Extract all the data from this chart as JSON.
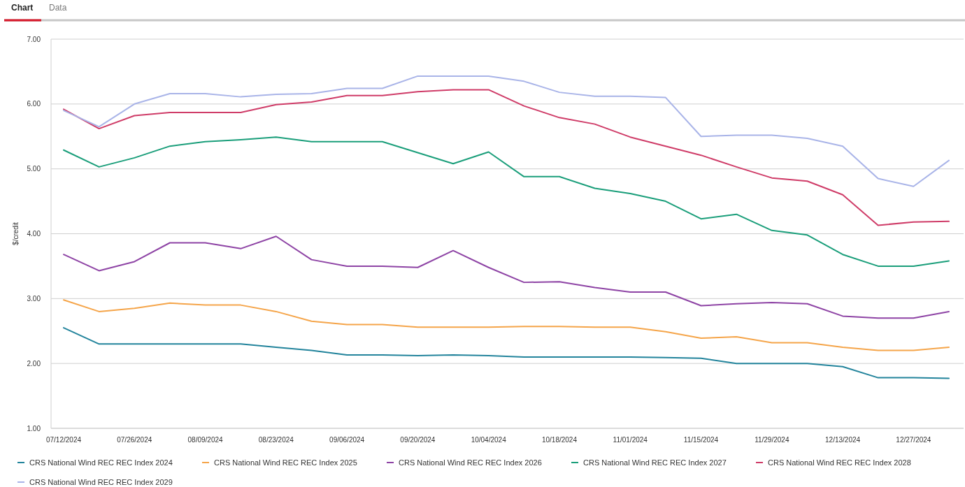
{
  "chart_data": {
    "type": "line",
    "ylabel": "$/credit",
    "annotations": [
      "Chart",
      "Data"
    ],
    "categories": [
      "07/12/2024",
      null,
      "07/26/2024",
      null,
      "08/09/2024",
      null,
      "08/23/2024",
      null,
      "09/06/2024",
      null,
      "09/20/2024",
      null,
      "10/04/2024",
      null,
      "10/18/2024",
      null,
      "11/01/2024",
      null,
      "11/15/2024",
      null,
      "11/29/2024",
      null,
      "12/13/2024",
      null,
      "12/27/2024",
      null
    ],
    "ylim": [
      1,
      7
    ],
    "yticks": [
      {
        "value": 1,
        "label": "1.00"
      },
      {
        "value": 2,
        "label": "2.00"
      },
      {
        "value": 3,
        "label": "3.00"
      },
      {
        "value": 4,
        "label": "4.00"
      },
      {
        "value": 5,
        "label": "5.00"
      },
      {
        "value": 6,
        "label": "6.00"
      },
      {
        "value": 7,
        "label": "7.00"
      }
    ],
    "grid": "y",
    "legend": "bottom",
    "marker": "none",
    "line_style": "solid",
    "series": [
      {
        "name": "CRS National Wind REC REC Index 2024",
        "color": "#23849c",
        "values": [
          2.55,
          2.3,
          2.3,
          2.3,
          2.3,
          2.3,
          2.25,
          2.2,
          2.13,
          2.13,
          2.12,
          2.13,
          2.12,
          2.1,
          2.1,
          2.1,
          2.1,
          2.09,
          2.08,
          2.0,
          2.0,
          2.0,
          1.95,
          1.78,
          1.78,
          1.77
        ]
      },
      {
        "name": "CRS National Wind REC REC Index 2025",
        "color": "#f5a54a",
        "values": [
          2.98,
          2.8,
          2.85,
          2.93,
          2.9,
          2.9,
          2.8,
          2.65,
          2.6,
          2.6,
          2.56,
          2.56,
          2.56,
          2.57,
          2.57,
          2.56,
          2.56,
          2.49,
          2.39,
          2.41,
          2.32,
          2.32,
          2.25,
          2.2,
          2.2,
          2.25
        ]
      },
      {
        "name": "CRS National Wind REC REC Index 2026",
        "color": "#8e44a5",
        "values": [
          3.68,
          3.43,
          3.57,
          3.86,
          3.86,
          3.77,
          3.96,
          3.6,
          3.5,
          3.5,
          3.48,
          3.74,
          3.48,
          3.25,
          3.26,
          3.17,
          3.1,
          3.1,
          2.89,
          2.92,
          2.94,
          2.92,
          2.73,
          2.7,
          2.7,
          2.8
        ]
      },
      {
        "name": "CRS National Wind REC REC Index 2027",
        "color": "#1a9e7a",
        "values": [
          5.29,
          5.03,
          5.17,
          5.35,
          5.42,
          5.45,
          5.49,
          5.42,
          5.42,
          5.42,
          5.25,
          5.08,
          5.26,
          4.88,
          4.88,
          4.7,
          4.62,
          4.5,
          4.23,
          4.3,
          4.05,
          3.98,
          3.68,
          3.5,
          3.5,
          3.58
        ]
      },
      {
        "name": "CRS National Wind REC REC Index 2028",
        "color": "#cf3c68",
        "values": [
          5.92,
          5.62,
          5.82,
          5.87,
          5.87,
          5.87,
          5.99,
          6.03,
          6.13,
          6.13,
          6.19,
          6.22,
          6.22,
          5.97,
          5.79,
          5.69,
          5.49,
          5.35,
          5.21,
          5.03,
          4.86,
          4.81,
          4.6,
          4.13,
          4.18,
          4.19
        ]
      },
      {
        "name": "CRS National Wind REC REC Index 2029",
        "color": "#a9b4e8",
        "values": [
          5.9,
          5.65,
          6.0,
          6.16,
          6.16,
          6.11,
          6.15,
          6.16,
          6.24,
          6.24,
          6.43,
          6.43,
          6.43,
          6.35,
          6.18,
          6.12,
          6.12,
          6.1,
          5.5,
          5.52,
          5.52,
          5.47,
          5.35,
          4.85,
          4.73,
          5.13
        ]
      }
    ]
  }
}
